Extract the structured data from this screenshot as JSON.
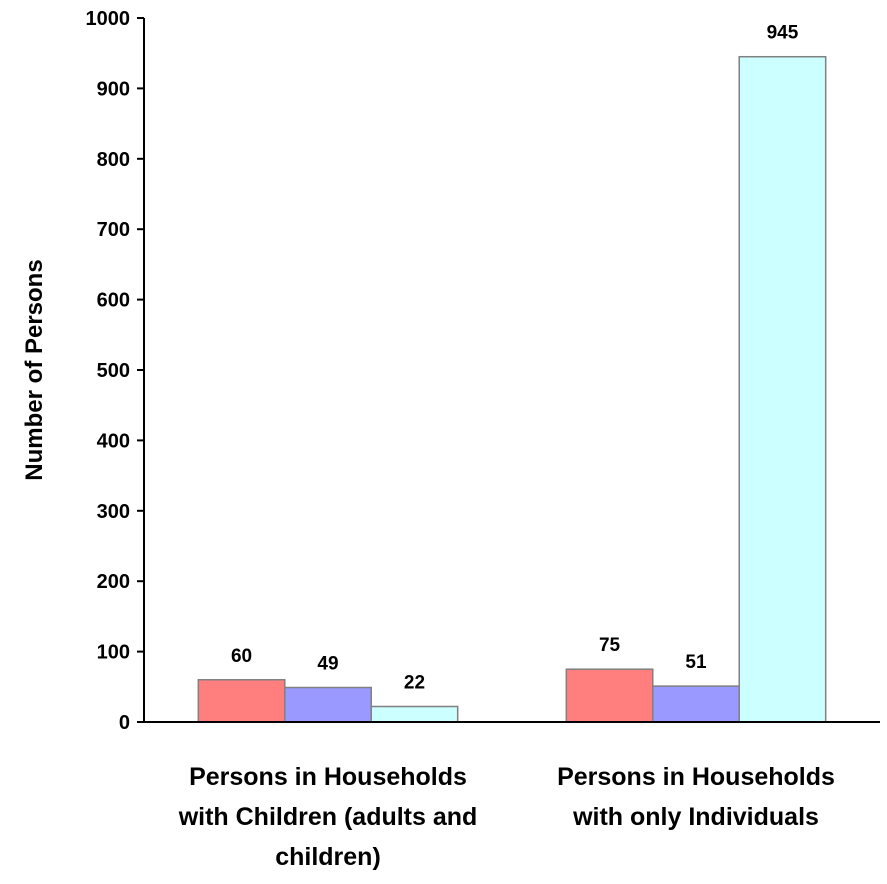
{
  "chart_data": {
    "type": "bar",
    "title": "",
    "xlabel": "",
    "ylabel": "Number of Persons",
    "ylim": [
      0,
      1000
    ],
    "yticks": [
      0,
      100,
      200,
      300,
      400,
      500,
      600,
      700,
      800,
      900,
      1000
    ],
    "grid": false,
    "legend": "none",
    "categories": [
      [
        "Persons in Households",
        "with Children (adults and",
        "children)"
      ],
      [
        "Persons in Households",
        "with only Individuals"
      ]
    ],
    "series": [
      {
        "values": [
          60,
          75
        ],
        "color": "#ff7f7f"
      },
      {
        "values": [
          49,
          51
        ],
        "color": "#9999ff"
      },
      {
        "values": [
          22,
          945
        ],
        "color": "#ccffff"
      }
    ]
  }
}
